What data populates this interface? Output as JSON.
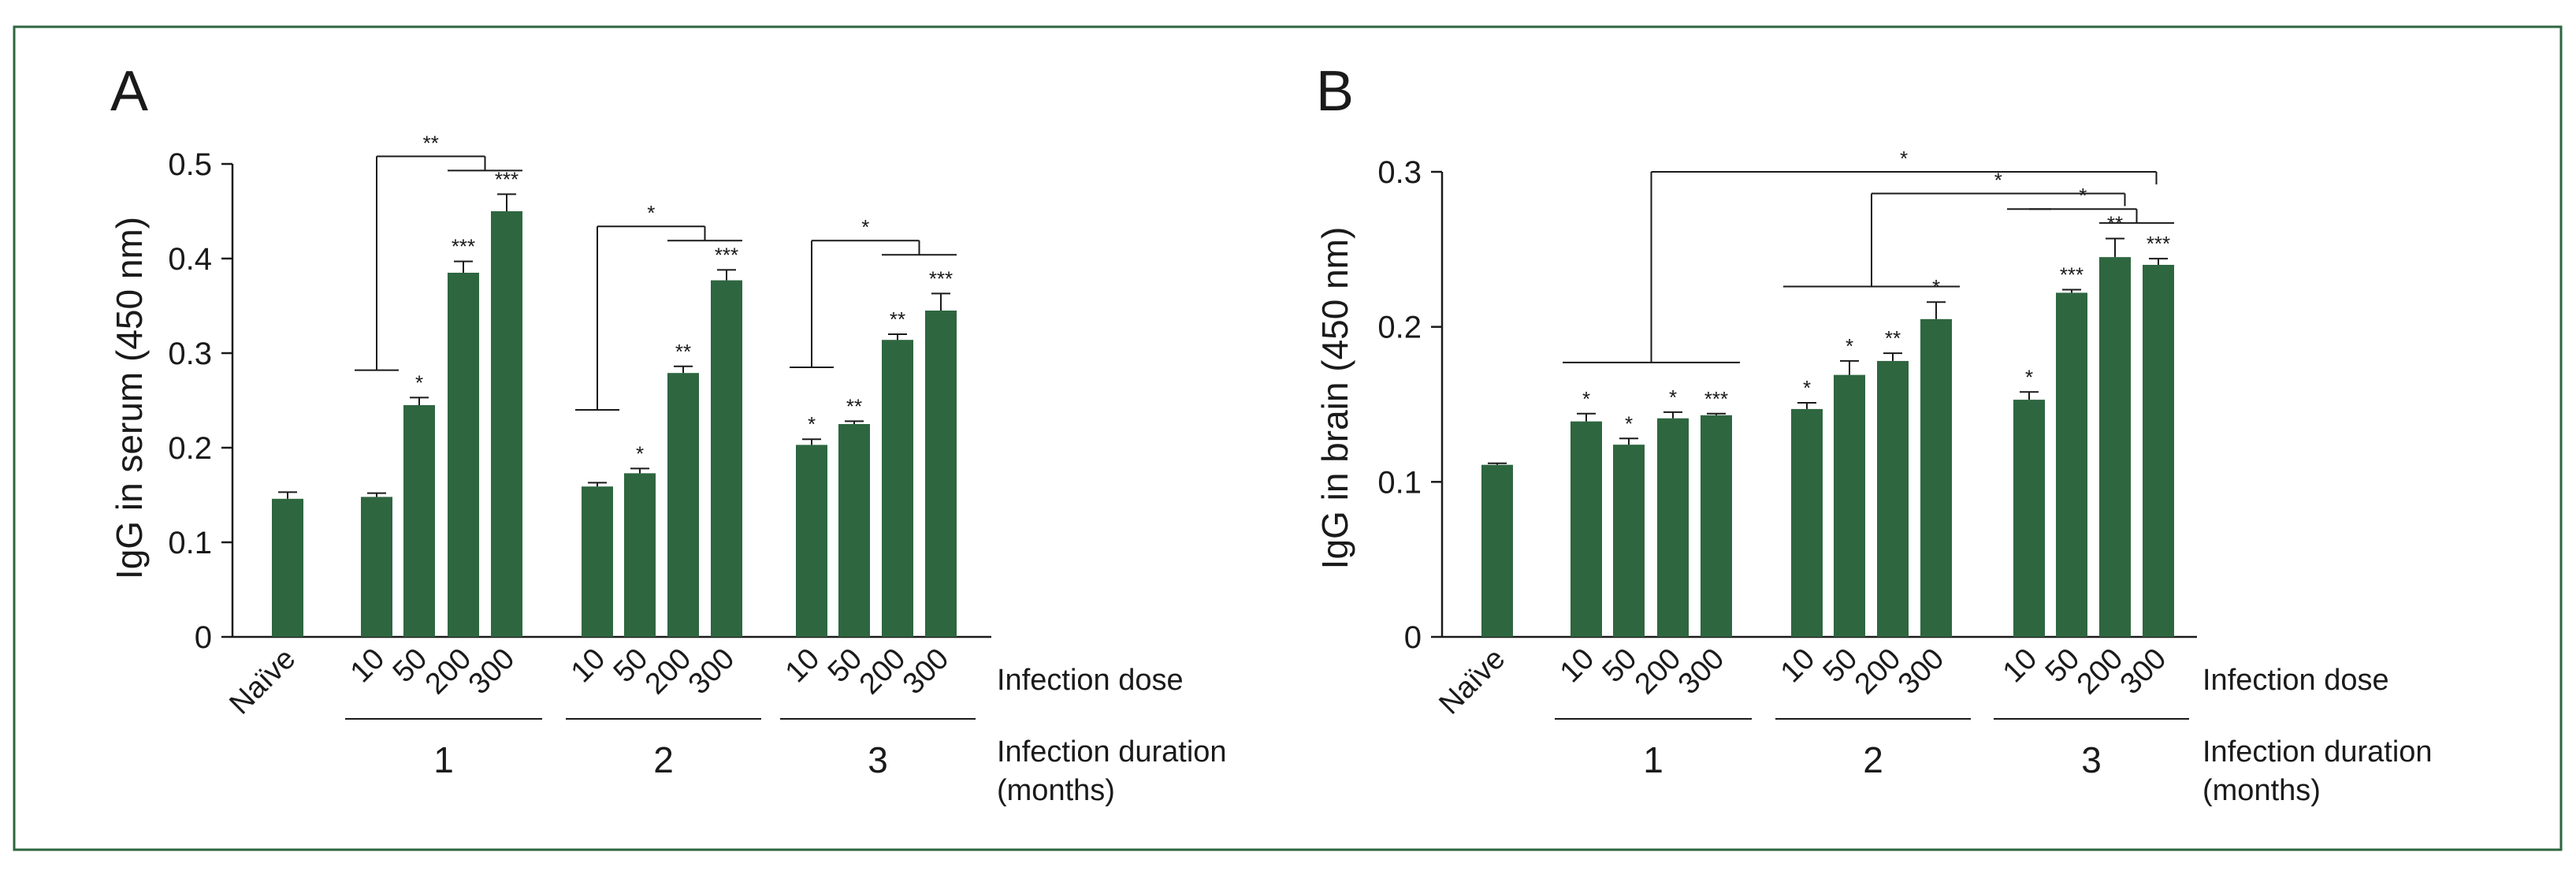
{
  "frame_color": "#2e6640",
  "bar_color": "#2e6640",
  "axis_labels": {
    "infection_dose": "Infection dose",
    "infection_duration_line1": "Infection duration",
    "infection_duration_line2": "(months)"
  },
  "chart_data": [
    {
      "panel": "A",
      "type": "bar",
      "title": "",
      "xlabel": "Infection dose",
      "ylabel": "IgG in serum (450 nm)",
      "ylim": [
        0,
        0.5
      ],
      "yticks": [
        "0",
        "0.1",
        "0.2",
        "0.3",
        "0.4",
        "0.5"
      ],
      "groups": [
        {
          "label": "",
          "bars": [
            {
              "dose": "Naïve",
              "value": 0.146,
              "err": 0.007,
              "sig": ""
            }
          ]
        },
        {
          "label": "1",
          "bars": [
            {
              "dose": "10",
              "value": 0.148,
              "err": 0.004,
              "sig": ""
            },
            {
              "dose": "50",
              "value": 0.245,
              "err": 0.008,
              "sig": "*"
            },
            {
              "dose": "200",
              "value": 0.385,
              "err": 0.012,
              "sig": "***"
            },
            {
              "dose": "300",
              "value": 0.45,
              "err": 0.018,
              "sig": "***"
            }
          ]
        },
        {
          "label": "2",
          "bars": [
            {
              "dose": "10",
              "value": 0.159,
              "err": 0.004,
              "sig": ""
            },
            {
              "dose": "50",
              "value": 0.173,
              "err": 0.005,
              "sig": "*"
            },
            {
              "dose": "200",
              "value": 0.279,
              "err": 0.007,
              "sig": "**"
            },
            {
              "dose": "300",
              "value": 0.377,
              "err": 0.011,
              "sig": "***"
            }
          ]
        },
        {
          "label": "3",
          "bars": [
            {
              "dose": "10",
              "value": 0.203,
              "err": 0.006,
              "sig": "*"
            },
            {
              "dose": "50",
              "value": 0.225,
              "err": 0.003,
              "sig": "**"
            },
            {
              "dose": "200",
              "value": 0.314,
              "err": 0.006,
              "sig": "**"
            },
            {
              "dose": "300",
              "value": 0.345,
              "err": 0.018,
              "sig": "***"
            }
          ]
        }
      ],
      "comparisons": [
        {
          "sig": "**",
          "level": 0.508,
          "left_group": 1,
          "right_group": 1,
          "base": 0.282
        },
        {
          "sig": "*",
          "level": 0.434,
          "left_group": 2,
          "right_group": 2,
          "base": 0.24
        },
        {
          "sig": "*",
          "level": 0.419,
          "left_group": 3,
          "right_group": 3,
          "base": 0.285
        }
      ]
    },
    {
      "panel": "B",
      "type": "bar",
      "title": "",
      "xlabel": "Infection dose",
      "ylabel": "IgG in brain (450 nm)",
      "ylim": [
        0,
        0.3
      ],
      "yticks": [
        "0",
        "0.1",
        "0.2",
        "0.3"
      ],
      "groups": [
        {
          "label": "",
          "bars": [
            {
              "dose": "Naïve",
              "value": 0.111,
              "err": 0.001,
              "sig": ""
            }
          ]
        },
        {
          "label": "1",
          "bars": [
            {
              "dose": "10",
              "value": 0.139,
              "err": 0.005,
              "sig": "*"
            },
            {
              "dose": "50",
              "value": 0.124,
              "err": 0.004,
              "sig": "*"
            },
            {
              "dose": "200",
              "value": 0.141,
              "err": 0.004,
              "sig": "*"
            },
            {
              "dose": "300",
              "value": 0.143,
              "err": 0.001,
              "sig": "***"
            }
          ]
        },
        {
          "label": "2",
          "bars": [
            {
              "dose": "10",
              "value": 0.147,
              "err": 0.004,
              "sig": "*"
            },
            {
              "dose": "50",
              "value": 0.169,
              "err": 0.009,
              "sig": "*"
            },
            {
              "dose": "200",
              "value": 0.178,
              "err": 0.005,
              "sig": "**"
            },
            {
              "dose": "300",
              "value": 0.205,
              "err": 0.011,
              "sig": "*"
            }
          ]
        },
        {
          "label": "3",
          "bars": [
            {
              "dose": "10",
              "value": 0.153,
              "err": 0.005,
              "sig": "*"
            },
            {
              "dose": "50",
              "value": 0.222,
              "err": 0.002,
              "sig": "***"
            },
            {
              "dose": "200",
              "value": 0.245,
              "err": 0.012,
              "sig": "**"
            },
            {
              "dose": "300",
              "value": 0.24,
              "err": 0.004,
              "sig": "***"
            }
          ]
        }
      ],
      "comparisons": [
        {
          "sig": "*",
          "level": 0.3,
          "left_group": 1,
          "right_group": 3,
          "base": 0.177
        },
        {
          "sig": "*",
          "level": 0.286,
          "left_group": 2,
          "right_group": 3,
          "base": 0.226
        },
        {
          "sig": "*",
          "level": 0.276,
          "left_group": 3,
          "right_group": 3,
          "base": 0.276
        }
      ]
    }
  ]
}
